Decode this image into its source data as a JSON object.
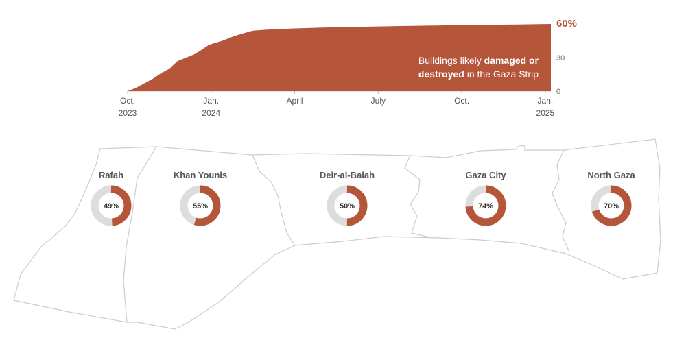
{
  "chart_data": [
    {
      "type": "area",
      "annotation": {
        "line1_normal": "Buildings likely ",
        "line1_bold": "damaged or",
        "line2_bold": "destroyed",
        "line2_normal": " in the Gaza Strip"
      },
      "x_unit": "months since Oct. 2023",
      "xlim": [
        0,
        15.2
      ],
      "ylim": [
        0,
        60
      ],
      "y_ticks": [
        {
          "value": 0,
          "label": "0"
        },
        {
          "value": 30,
          "label": "30"
        },
        {
          "value": 60,
          "label": "60%"
        }
      ],
      "x_ticks": [
        {
          "value": 0,
          "line1": "Oct.",
          "line2": "2023"
        },
        {
          "value": 3,
          "line1": "Jan.",
          "line2": "2024"
        },
        {
          "value": 6,
          "line1": "April",
          "line2": ""
        },
        {
          "value": 9,
          "line1": "July",
          "line2": ""
        },
        {
          "value": 12,
          "line1": "Oct.",
          "line2": ""
        },
        {
          "value": 15,
          "line1": "Jan.",
          "line2": "2025"
        }
      ],
      "series": [
        {
          "x": [
            0,
            0.3,
            0.6,
            0.9,
            1.2,
            1.5,
            1.8,
            2.0,
            2.2,
            2.4,
            2.6,
            2.9,
            3.0,
            3.4,
            3.8,
            4.2,
            4.5,
            5.0,
            5.5,
            6.0,
            7.0,
            8.0,
            9.0,
            10.0,
            11.0,
            12.0,
            13.0,
            14.0,
            15.2
          ],
          "values": [
            0,
            3,
            7,
            11,
            16,
            20,
            27,
            29,
            31,
            33,
            36,
            41,
            42,
            45,
            49,
            52,
            54,
            55,
            55.5,
            56,
            56.8,
            57.3,
            57.8,
            58.2,
            58.6,
            59,
            59.3,
            59.6,
            60
          ]
        }
      ],
      "colors": {
        "area": "#b5553a"
      }
    },
    {
      "type": "pie",
      "regions": [
        {
          "name": "Rafah",
          "value": 49
        },
        {
          "name": "Khan Younis",
          "value": 55
        },
        {
          "name": "Deir-al-Balah",
          "value": 50
        },
        {
          "name": "Gaza City",
          "value": 74
        },
        {
          "name": "North Gaza",
          "value": 70
        }
      ],
      "colors": {
        "filled": "#b5553a",
        "remaining": "#dddddd"
      }
    }
  ]
}
